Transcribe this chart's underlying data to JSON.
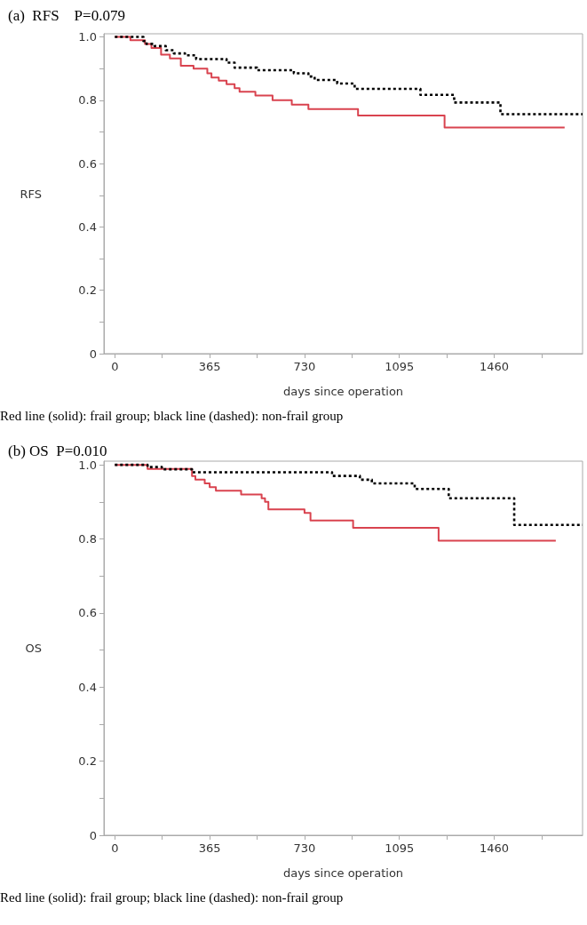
{
  "chart_data": [
    {
      "type": "step",
      "title": "(a)  RFS    P=0.079",
      "xlabel": "days since operation",
      "ylabel": "RFS",
      "annotations": [
        "Red line (solid): frail group; black line (dashed): non-frail group"
      ],
      "xlim": [
        -42,
        1800
      ],
      "xticks": [
        0,
        {
          "value": 182.5,
          "label": null
        },
        365,
        {
          "value": 547.5,
          "label": null
        },
        730,
        {
          "value": 912.5,
          "label": null
        },
        1095,
        {
          "value": 1277.5,
          "label": null
        },
        1460,
        {
          "value": 1642.5,
          "label": null
        }
      ],
      "ylim": [
        0,
        1.01
      ],
      "yticks": [
        0,
        {
          "value": 0.1,
          "label": null
        },
        0.2,
        {
          "value": 0.3,
          "label": null
        },
        0.4,
        {
          "value": 0.5,
          "label": null
        },
        0.6,
        {
          "value": 0.7,
          "label": null
        },
        0.8,
        {
          "value": 0.9,
          "label": null
        },
        {
          "value": 1,
          "label": "1.0"
        }
      ],
      "grid": false,
      "marker": "none",
      "series": [
        {
          "color": "#d9434f",
          "line_style": "solid",
          "x": [
            0,
            60,
            116,
            141,
            178,
            212,
            254,
            303,
            356,
            372,
            400,
            430,
            461,
            480,
            541,
            607,
            681,
            745,
            936,
            1269,
            1731
          ],
          "values": [
            1.0,
            0.99,
            0.978,
            0.965,
            0.944,
            0.932,
            0.909,
            0.9,
            0.885,
            0.872,
            0.862,
            0.851,
            0.838,
            0.827,
            0.815,
            0.8,
            0.786,
            0.772,
            0.752,
            0.714,
            0.714
          ]
        },
        {
          "color": "#000000",
          "line_style": "dotted",
          "x": [
            0,
            110,
            122,
            153,
            196,
            227,
            270,
            313,
            430,
            461,
            547,
            689,
            745,
            769,
            856,
            923,
            1176,
            1306,
            1484,
            1800
          ],
          "values": [
            1.0,
            0.987,
            0.978,
            0.971,
            0.958,
            0.948,
            0.942,
            0.93,
            0.919,
            0.903,
            0.895,
            0.885,
            0.875,
            0.864,
            0.853,
            0.836,
            0.817,
            0.793,
            0.756,
            0.756
          ]
        }
      ]
    },
    {
      "type": "step",
      "title": "(b) OS  P=0.010",
      "xlabel": "days since operation",
      "ylabel": "OS",
      "annotations": [
        "Red line (solid): frail group; black line (dashed): non-frail group"
      ],
      "xlim": [
        -42,
        1800
      ],
      "xticks": [
        0,
        {
          "value": 182.5,
          "label": null
        },
        365,
        {
          "value": 547.5,
          "label": null
        },
        730,
        {
          "value": 912.5,
          "label": null
        },
        1095,
        {
          "value": 1277.5,
          "label": null
        },
        1460,
        {
          "value": 1642.5,
          "label": null
        }
      ],
      "ylim": [
        0,
        1.01
      ],
      "yticks": [
        0,
        {
          "value": 0.1,
          "label": null
        },
        0.2,
        {
          "value": 0.3,
          "label": null
        },
        0.4,
        {
          "value": 0.5,
          "label": null
        },
        0.6,
        {
          "value": 0.7,
          "label": null
        },
        0.8,
        {
          "value": 0.9,
          "label": null
        },
        {
          "value": 1,
          "label": "1.0"
        }
      ],
      "grid": false,
      "marker": "none",
      "series": [
        {
          "color": "#d9434f",
          "line_style": "solid",
          "x": [
            0,
            126,
            297,
            310,
            346,
            365,
            389,
            486,
            565,
            578,
            591,
            730,
            753,
            917,
            1246,
            1697
          ],
          "values": [
            1.0,
            0.989,
            0.97,
            0.96,
            0.95,
            0.94,
            0.93,
            0.92,
            0.91,
            0.9,
            0.88,
            0.87,
            0.85,
            0.83,
            0.795,
            0.795
          ]
        },
        {
          "color": "#000000",
          "line_style": "dotted",
          "x": [
            0,
            126,
            181,
            297,
            836,
            943,
            989,
            1154,
            1285,
            1537,
            1800
          ],
          "values": [
            1.0,
            0.994,
            0.988,
            0.98,
            0.97,
            0.96,
            0.95,
            0.935,
            0.91,
            0.838,
            0.838
          ]
        }
      ]
    }
  ]
}
